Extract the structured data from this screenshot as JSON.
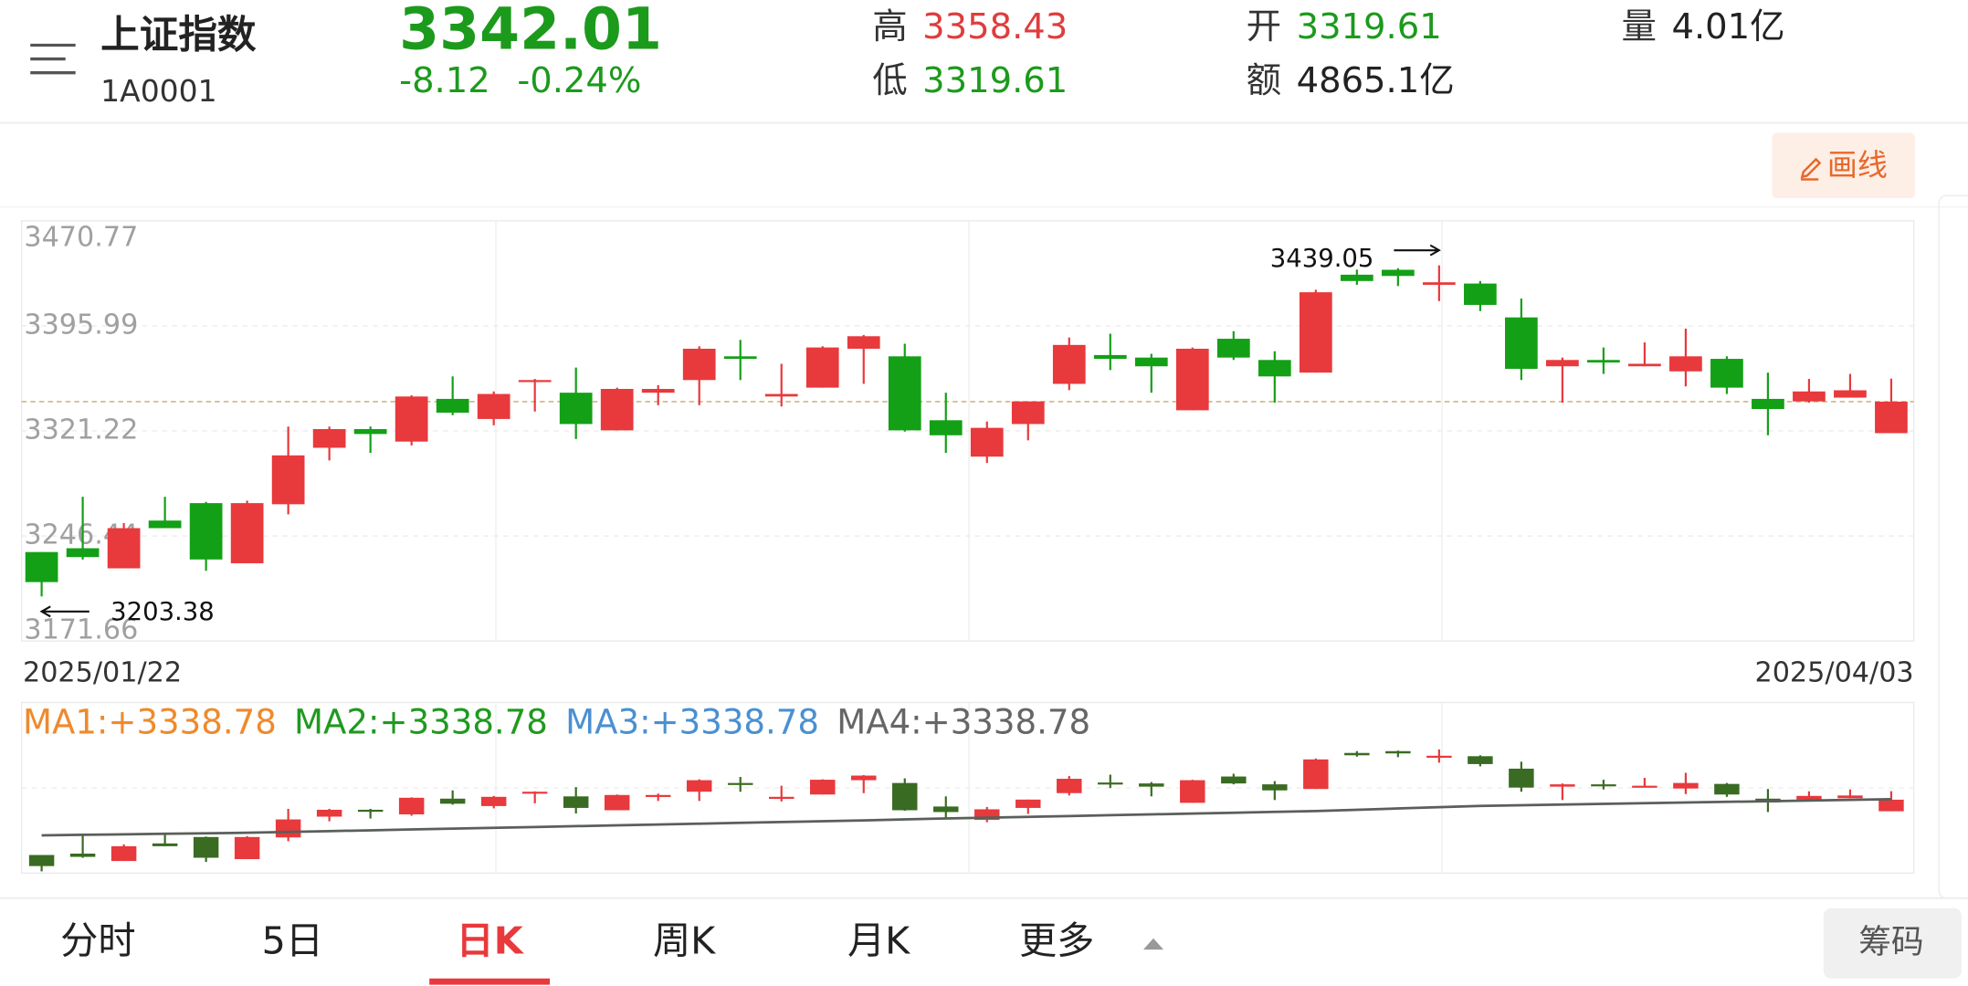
{
  "header": {
    "title": "上证指数",
    "code": "1A0001",
    "price": "3342.01",
    "change": "-8.12",
    "change_pct": "-0.24%",
    "color": "#1c9a1c",
    "stats": [
      {
        "label": "高",
        "value": "3358.43",
        "color": "#e03c3c"
      },
      {
        "label": "低",
        "value": "3319.61",
        "color": "#1c9a1c"
      },
      {
        "label": "开",
        "value": "3319.61",
        "color": "#1c9a1c"
      },
      {
        "label": "额",
        "value": "4865.1亿",
        "color": "#222222"
      },
      {
        "label": "量",
        "value": "4.01亿",
        "color": "#222222"
      }
    ]
  },
  "draw_button": "画线",
  "chart_data": {
    "type": "candlestick",
    "categories": [
      "2025/01/22",
      null,
      null,
      null,
      null,
      null,
      null,
      null,
      null,
      null,
      null,
      null,
      null,
      null,
      null,
      null,
      null,
      null,
      null,
      null,
      null,
      null,
      null,
      null,
      null,
      null,
      null,
      null,
      null,
      null,
      null,
      null,
      null,
      null,
      null,
      null,
      null,
      null,
      null,
      null,
      null,
      null,
      null,
      null,
      null,
      "2025/04/03"
    ],
    "open": [
      3235.0,
      3237.7,
      3223.4,
      3257.4,
      3269.8,
      3227.0,
      3269.0,
      3309.2,
      3322.5,
      3313.6,
      3344.0,
      3329.7,
      3356.5,
      3348.4,
      3321.6,
      3348.4,
      3357.4,
      3374.3,
      3345.7,
      3352.0,
      3379.7,
      3374.3,
      3328.8,
      3302.9,
      3326.1,
      3354.7,
      3375.2,
      3373.4,
      3335.9,
      3386.8,
      3371.7,
      3362.7,
      3432.4,
      3435.9,
      3425.2,
      3426.1,
      3402.0,
      3367.2,
      3371.7,
      3367.2,
      3363.6,
      3372.5,
      3344.0,
      3342.2,
      3344.9,
      3319.61
    ],
    "high": [
      3235.0,
      3274.3,
      3255.6,
      3274.3,
      3270.7,
      3271.6,
      3324.3,
      3324.3,
      3324.3,
      3346.6,
      3360.0,
      3349.3,
      3358.2,
      3366.3,
      3352.0,
      3353.8,
      3381.5,
      3386.0,
      3369.0,
      3381.5,
      3389.5,
      3383.3,
      3348.4,
      3327.9,
      3342.2,
      3387.7,
      3390.4,
      3376.1,
      3380.6,
      3392.2,
      3377.9,
      3421.7,
      3436.0,
      3437.0,
      3439.05,
      3427.9,
      3415.4,
      3373.4,
      3380.6,
      3384.2,
      3394.0,
      3374.3,
      3362.7,
      3358.2,
      3361.8,
      3358.43
    ],
    "low": [
      3203.38,
      3229.7,
      3223.4,
      3252.0,
      3221.6,
      3227.0,
      3261.8,
      3300.2,
      3305.6,
      3310.9,
      3332.4,
      3325.2,
      3335.0,
      3315.4,
      3321.6,
      3339.5,
      3339.5,
      3357.4,
      3338.6,
      3352.0,
      3354.7,
      3320.7,
      3305.6,
      3298.4,
      3314.5,
      3350.2,
      3364.5,
      3348.4,
      3335.9,
      3371.7,
      3341.3,
      3362.7,
      3425.2,
      3424.3,
      3413.6,
      3406.5,
      3357.4,
      3341.3,
      3361.8,
      3367.2,
      3352.9,
      3347.5,
      3318.1,
      3341.3,
      3344.9,
      3319.61
    ],
    "close": [
      3213.6,
      3231.4,
      3252.0,
      3252.0,
      3229.7,
      3269.8,
      3303.8,
      3322.5,
      3319.0,
      3345.7,
      3334.2,
      3347.5,
      3357.4,
      3326.1,
      3351.1,
      3351.1,
      3379.7,
      3372.5,
      3347.5,
      3380.6,
      3388.6,
      3321.6,
      3318.1,
      3323.4,
      3342.2,
      3382.4,
      3372.5,
      3367.2,
      3379.7,
      3373.4,
      3360.0,
      3419.9,
      3427.9,
      3431.5,
      3427.0,
      3410.9,
      3365.4,
      3371.7,
      3369.9,
      3369.0,
      3374.3,
      3352.0,
      3336.8,
      3349.3,
      3350.13,
      3342.01
    ],
    "up_color": "#e8393c",
    "down_color": "#13a016",
    "ylim": [
      3171.66,
      3470.77
    ],
    "yticks": [
      3470.77,
      3395.99,
      3321.22,
      3246.44,
      3171.66
    ],
    "grid": true,
    "max_label": "3439.05",
    "min_label": "3203.38",
    "ma_legend": [
      {
        "label": "MA1:+3338.78",
        "color": "#ee8a2e"
      },
      {
        "label": "MA2:+3338.78",
        "color": "#1f9a1f"
      },
      {
        "label": "MA3:+3338.78",
        "color": "#4a90d2"
      },
      {
        "label": "MA4:+3338.78",
        "color": "#666666"
      }
    ],
    "ma_panel": {
      "ylim": [
        3200,
        3530
      ],
      "color": "#5a5f5a",
      "up_color": "#e8393c",
      "down_color": "#3a6b22",
      "values": [
        3273,
        3274,
        3275,
        3276,
        3277,
        3278,
        3279.6,
        3281.2,
        3282.8,
        3284.4,
        3286,
        3287.6,
        3289.2,
        3290.8,
        3292.4,
        3294,
        3295.6,
        3297.2,
        3298.8,
        3300.4,
        3302,
        3304,
        3305.6,
        3307.2,
        3308.8,
        3310.4,
        3312,
        3313.6,
        3315.2,
        3316.8,
        3318.4,
        3320,
        3322.5,
        3325,
        3327.5,
        3330,
        3331.3,
        3332.6,
        3333.9,
        3335.2,
        3336.5,
        3337.8,
        3339.1,
        3340.4,
        3341.7,
        3343
      ]
    }
  },
  "tabs": [
    "分时",
    "5日",
    "日K",
    "周K",
    "月K",
    "更多"
  ],
  "active_tab": 2,
  "chip_button": "筹码"
}
